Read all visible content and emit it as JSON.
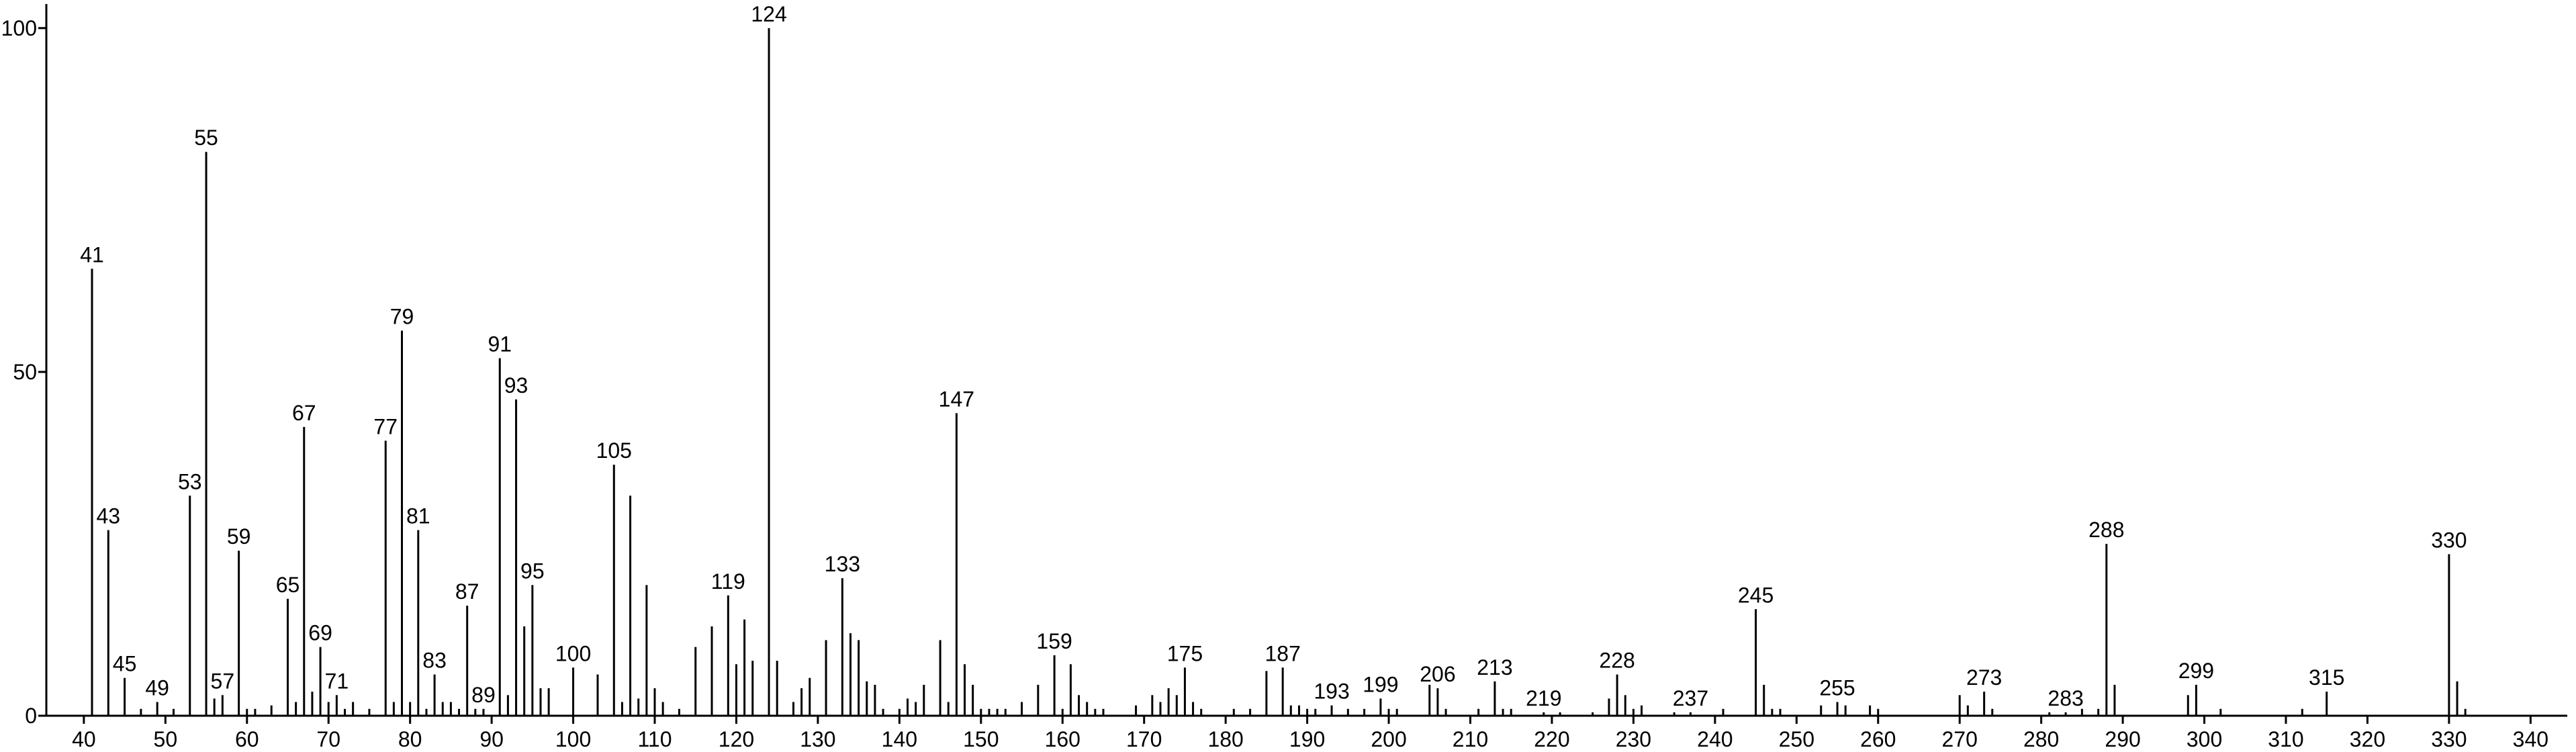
{
  "chart_data": {
    "type": "stem",
    "color": "#000000",
    "x": [
      41,
      43,
      45,
      47,
      49,
      51,
      53,
      55,
      56,
      57,
      59,
      60,
      61,
      63,
      65,
      66,
      67,
      68,
      69,
      70,
      71,
      72,
      73,
      75,
      77,
      78,
      79,
      80,
      81,
      82,
      83,
      84,
      85,
      86,
      87,
      88,
      89,
      91,
      92,
      93,
      94,
      95,
      96,
      97,
      100,
      103,
      105,
      106,
      107,
      108,
      109,
      110,
      111,
      113,
      115,
      117,
      119,
      120,
      121,
      122,
      124,
      125,
      127,
      128,
      129,
      131,
      133,
      134,
      135,
      136,
      137,
      138,
      140,
      141,
      142,
      143,
      145,
      146,
      147,
      148,
      149,
      150,
      151,
      152,
      153,
      155,
      157,
      159,
      160,
      161,
      162,
      163,
      164,
      165,
      169,
      171,
      172,
      173,
      174,
      175,
      176,
      177,
      181,
      183,
      185,
      187,
      188,
      189,
      190,
      191,
      193,
      195,
      197,
      199,
      200,
      201,
      205,
      206,
      207,
      211,
      213,
      214,
      215,
      219,
      221,
      225,
      227,
      228,
      229,
      230,
      231,
      235,
      237,
      241,
      245,
      246,
      247,
      248,
      253,
      255,
      256,
      259,
      260,
      270,
      271,
      273,
      274,
      281,
      283,
      285,
      287,
      288,
      289,
      298,
      299,
      302,
      312,
      315,
      330,
      331,
      332
    ],
    "values": [
      65,
      27,
      5.5,
      1,
      2,
      1,
      32,
      82,
      2.5,
      3,
      24,
      1,
      1,
      1.5,
      17,
      2,
      42,
      3.5,
      10,
      2,
      3,
      1,
      2,
      1,
      40,
      2,
      56,
      2,
      27,
      1,
      6,
      2,
      2,
      1,
      16,
      1,
      1,
      52,
      3,
      46,
      13,
      19,
      4,
      4,
      7,
      6,
      36.5,
      2,
      32,
      2.5,
      19,
      4,
      2,
      1,
      10,
      13,
      17.5,
      7.5,
      14,
      8,
      100,
      8,
      2,
      4,
      5.5,
      11,
      20,
      12,
      11,
      5,
      4.5,
      1,
      1,
      2.5,
      2,
      4.5,
      11,
      2,
      44,
      7.5,
      4.5,
      1,
      1,
      1,
      1,
      2,
      4.5,
      8.8,
      1,
      7.5,
      3,
      2,
      1,
      1,
      1.5,
      3,
      2,
      4,
      3,
      7,
      2,
      1,
      1,
      1,
      6.5,
      7,
      1.5,
      1.5,
      1,
      1,
      1.5,
      1,
      1,
      2.5,
      1,
      1,
      4.5,
      4,
      1,
      1,
      5,
      1,
      1,
      0.5,
      0.5,
      0.5,
      2.5,
      6,
      3,
      1,
      1.5,
      0.5,
      0.5,
      1,
      15.5,
      4.5,
      1,
      1,
      1.5,
      2,
      1.5,
      1.5,
      1,
      3,
      1.5,
      3.5,
      1,
      0.5,
      0.5,
      1,
      1,
      25,
      4.5,
      3,
      4.5,
      1,
      1,
      3.5,
      23.5,
      5,
      1
    ],
    "peak_labels": [
      41,
      43,
      45,
      49,
      53,
      55,
      57,
      59,
      65,
      67,
      69,
      71,
      77,
      79,
      81,
      83,
      87,
      89,
      91,
      93,
      95,
      100,
      105,
      119,
      124,
      133,
      147,
      159,
      175,
      187,
      193,
      199,
      206,
      213,
      219,
      228,
      237,
      245,
      255,
      273,
      283,
      288,
      299,
      315,
      330
    ],
    "xlim": [
      35.4,
      344.5
    ],
    "ylim": [
      0,
      103.5
    ],
    "xticks": [
      40,
      50,
      60,
      70,
      80,
      90,
      100,
      110,
      120,
      130,
      140,
      150,
      160,
      170,
      180,
      190,
      200,
      210,
      220,
      230,
      240,
      250,
      260,
      270,
      280,
      290,
      300,
      310,
      320,
      330,
      340
    ],
    "yticks": [
      0,
      50,
      100
    ]
  }
}
